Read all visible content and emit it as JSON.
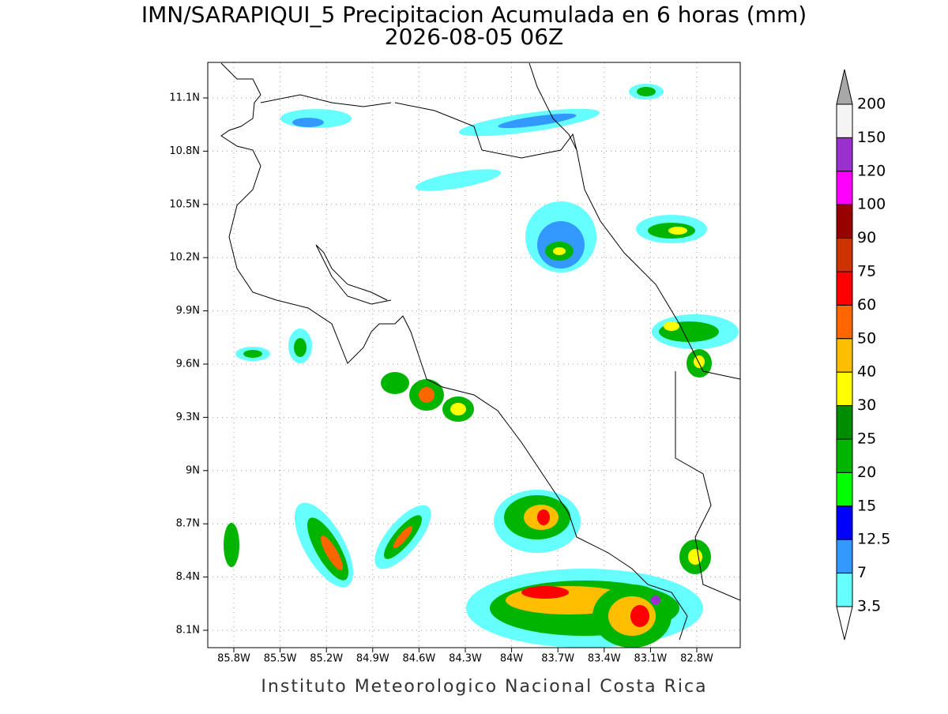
{
  "header": {
    "title": "IMN/SARAPIQUI_5 Precipitacion Acumulada en 6 horas (mm)",
    "subtitle": "2026-08-05 06Z"
  },
  "map": {
    "lon_ticks": [
      "85.8W",
      "85.5W",
      "85.2W",
      "84.9W",
      "84.6W",
      "84.3W",
      "84W",
      "83.7W",
      "83.4W",
      "83.1W",
      "82.8W"
    ],
    "lat_ticks": [
      "11.1N",
      "10.8N",
      "10.5N",
      "10.2N",
      "9.9N",
      "9.6N",
      "9.3N",
      "9N",
      "8.7N",
      "8.4N",
      "8.1N"
    ],
    "grid": true
  },
  "colorbar": {
    "labels": [
      "200",
      "150",
      "120",
      "100",
      "90",
      "75",
      "60",
      "50",
      "40",
      "30",
      "25",
      "20",
      "15",
      "12.5",
      "7",
      "3.5"
    ],
    "colors": [
      "#f4f4f4",
      "#9b30d0",
      "#ff00ff",
      "#990000",
      "#cc3300",
      "#ff0000",
      "#ff6600",
      "#ffbf00",
      "#ffff00",
      "#008c00",
      "#00b400",
      "#00ff00",
      "#0000ff",
      "#3399ff",
      "#66ffff"
    ],
    "over_color": "#a8a8a8",
    "under_color": "#ffffff"
  },
  "footer": "Instituto Meteorologico Nacional Costa Rica"
}
